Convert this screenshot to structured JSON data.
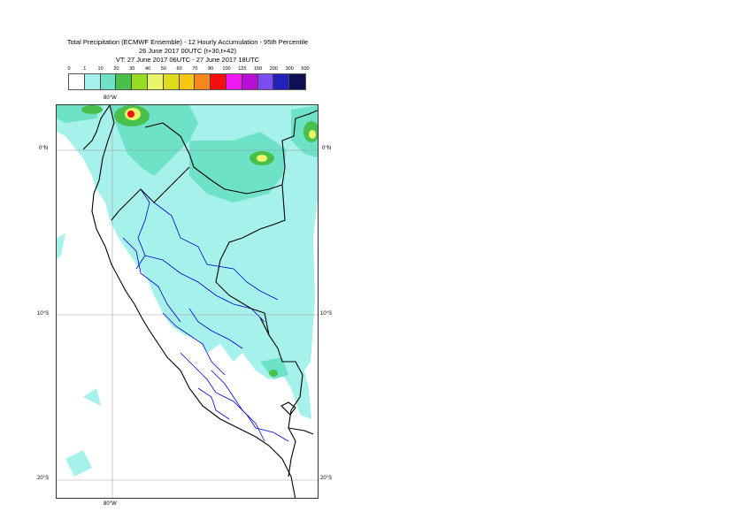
{
  "title": {
    "line1": "Total Precipitation (ECMWF Ensemble) - 12 Hourly Accumulation - 95th Percentile",
    "line2": "26 June 2017 00UTC (t+30,t+42)",
    "line3": "VT: 27 June 2017 06UTC - 27 June 2017 18UTC"
  },
  "legend": {
    "labels": [
      "0",
      "1",
      "10",
      "20",
      "30",
      "40",
      "50",
      "60",
      "70",
      "80",
      "100",
      "125",
      "150",
      "200",
      "300",
      "500"
    ],
    "colors": [
      "#ffffff",
      "#a7f1ec",
      "#6ee2c7",
      "#49c04b",
      "#95dc23",
      "#eaf567",
      "#dcdc1c",
      "#f7c611",
      "#f7861c",
      "#f50f0f",
      "#f218f2",
      "#b40fd2",
      "#7b4cf0",
      "#2222b8",
      "#0f0f55"
    ]
  },
  "map": {
    "lon_top": "80°W",
    "lon_bottom": "80°W",
    "lat_labels": [
      "0°N",
      "10°S",
      "20°S"
    ],
    "colors": {
      "light": "#a7f1ec",
      "medium": "#6ee2c7",
      "green": "#49c04b",
      "yellow": "#eaf567",
      "red": "#f50f0f",
      "country_border": "#000000",
      "region_border": "#0000cc",
      "gridline": "#999999"
    }
  }
}
